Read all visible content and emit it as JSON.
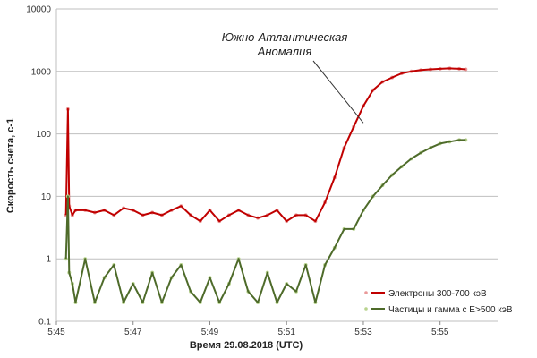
{
  "chart_data": {
    "type": "line",
    "title": "",
    "xlabel": "Время 29.08.2018 (UTC)",
    "ylabel": "Скорость счета, с-1",
    "y_scale": "log",
    "ylim": [
      0.1,
      10000
    ],
    "xlim": [
      "5:45:00",
      "5:56:30"
    ],
    "y_ticks": [
      "0.1",
      "1",
      "10",
      "100",
      "1000",
      "10000"
    ],
    "x_ticks": [
      "5:45",
      "5:47",
      "5:49",
      "5:51",
      "5:53",
      "5:55"
    ],
    "grid": "horizontal",
    "legend_position": "bottom-right",
    "annotation": {
      "lines": [
        "Южно-Атлантическая",
        "Аномалия"
      ],
      "points_to": {
        "x": "5:53:00",
        "y": 150
      }
    },
    "series": [
      {
        "name": "Электроны 300-700 кэВ",
        "color": "#c00000",
        "marker_color": "#e99999",
        "x": [
          "5:45:15",
          "5:45:18",
          "5:45:20",
          "5:45:25",
          "5:45:30",
          "5:45:45",
          "5:46:00",
          "5:46:15",
          "5:46:30",
          "5:46:45",
          "5:47:00",
          "5:47:15",
          "5:47:30",
          "5:47:45",
          "5:48:00",
          "5:48:15",
          "5:48:30",
          "5:48:45",
          "5:49:00",
          "5:49:15",
          "5:49:30",
          "5:49:45",
          "5:50:00",
          "5:50:15",
          "5:50:30",
          "5:50:45",
          "5:51:00",
          "5:51:15",
          "5:51:30",
          "5:51:45",
          "5:52:00",
          "5:52:15",
          "5:52:30",
          "5:52:45",
          "5:53:00",
          "5:53:15",
          "5:53:30",
          "5:53:45",
          "5:54:00",
          "5:54:15",
          "5:54:30",
          "5:54:45",
          "5:55:00",
          "5:55:15",
          "5:55:30",
          "5:55:40"
        ],
        "values": [
          5,
          250,
          7,
          5,
          6,
          6,
          5.5,
          6,
          5,
          6.5,
          6,
          5,
          5.5,
          5,
          6,
          7,
          5,
          4,
          6,
          4,
          5,
          6,
          5,
          4.5,
          5,
          6,
          4,
          5,
          5,
          4,
          8,
          20,
          60,
          130,
          280,
          500,
          680,
          800,
          930,
          1000,
          1050,
          1080,
          1100,
          1120,
          1100,
          1080
        ]
      },
      {
        "name": "Частицы и гамма с E>500 кэВ",
        "color": "#4e6b2a",
        "marker_color": "#b8d38e",
        "x": [
          "5:45:15",
          "5:45:18",
          "5:45:20",
          "5:45:25",
          "5:45:30",
          "5:45:45",
          "5:46:00",
          "5:46:15",
          "5:46:30",
          "5:46:45",
          "5:47:00",
          "5:47:15",
          "5:47:30",
          "5:47:45",
          "5:48:00",
          "5:48:15",
          "5:48:30",
          "5:48:45",
          "5:49:00",
          "5:49:15",
          "5:49:30",
          "5:49:45",
          "5:50:00",
          "5:50:15",
          "5:50:30",
          "5:50:45",
          "5:51:00",
          "5:51:15",
          "5:51:30",
          "5:51:45",
          "5:52:00",
          "5:52:15",
          "5:52:30",
          "5:52:45",
          "5:53:00",
          "5:53:15",
          "5:53:30",
          "5:53:45",
          "5:54:00",
          "5:54:15",
          "5:54:30",
          "5:54:45",
          "5:55:00",
          "5:55:15",
          "5:55:30",
          "5:55:40"
        ],
        "values": [
          1,
          10,
          0.6,
          0.4,
          0.2,
          1,
          0.2,
          0.5,
          0.8,
          0.2,
          0.4,
          0.2,
          0.6,
          0.2,
          0.5,
          0.8,
          0.3,
          0.2,
          0.5,
          0.2,
          0.4,
          1,
          0.3,
          0.2,
          0.6,
          0.2,
          0.4,
          0.3,
          0.8,
          0.2,
          0.8,
          1.5,
          3,
          3,
          6,
          10,
          15,
          22,
          30,
          40,
          50,
          60,
          70,
          75,
          80,
          80
        ]
      }
    ]
  }
}
